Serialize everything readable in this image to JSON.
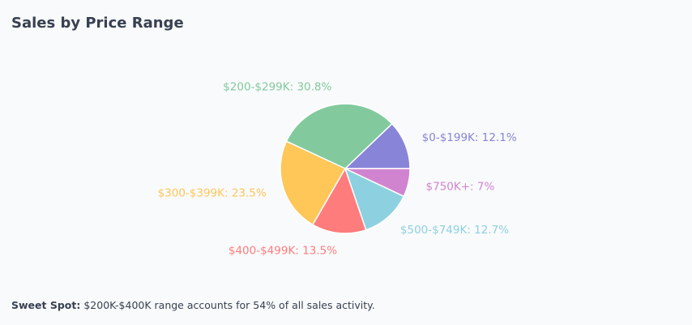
{
  "title": "Sales by Price Range",
  "chart_data": {
    "type": "pie",
    "title": "Sales by Price Range",
    "start_angle_deg": 0,
    "direction": "counterclockwise",
    "slices": [
      {
        "label": "$0-$199K",
        "value": 12.1,
        "text": "$0-$199K: 12.1%",
        "color": "#8884d8"
      },
      {
        "label": "$200-$299K",
        "value": 30.8,
        "text": "$200-$299K: 30.8%",
        "color": "#82ca9d"
      },
      {
        "label": "$300-$399K",
        "value": 23.5,
        "text": "$300-$399K: 23.5%",
        "color": "#ffc658"
      },
      {
        "label": "$400-$499K",
        "value": 13.5,
        "text": "$400-$499K: 13.5%",
        "color": "#ff7c7c"
      },
      {
        "label": "$500-$749K",
        "value": 12.7,
        "text": "$500-$749K: 12.7%",
        "color": "#8dd1e1"
      },
      {
        "label": "$750K+",
        "value": 7,
        "text": "$750K+: 7%",
        "color": "#d084d0"
      }
    ]
  },
  "note": {
    "label": "Sweet Spot:",
    "text": " $200K-$400K range accounts for 54% of all sales activity."
  }
}
